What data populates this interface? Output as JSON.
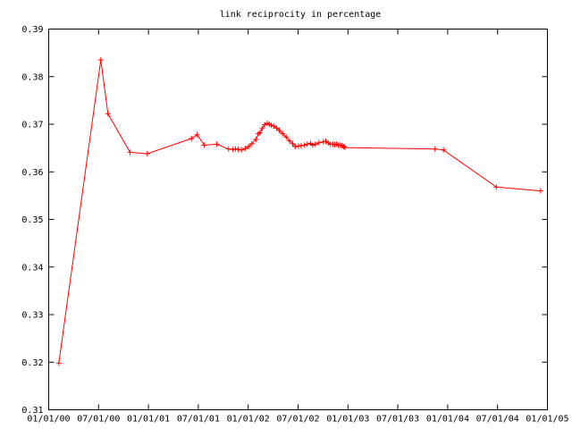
{
  "chart_data": {
    "type": "line",
    "title": "link reciprocity in percentage",
    "xlabel": "",
    "ylabel": "",
    "grid": false,
    "legend": "none",
    "series_color": "#ff0000",
    "ylim": [
      0.31,
      0.39
    ],
    "yticks": [
      "0.31",
      "0.32",
      "0.33",
      "0.34",
      "0.35",
      "0.36",
      "0.37",
      "0.38",
      "0.39"
    ],
    "xticks": [
      "01/01/00",
      "07/01/00",
      "01/01/01",
      "07/01/01",
      "01/01/02",
      "07/01/02",
      "01/01/03",
      "07/01/03",
      "01/01/04",
      "07/01/04",
      "01/01/05"
    ],
    "xlim": [
      "2000-01-01",
      "2005-01-01"
    ],
    "series": [
      {
        "x": [
          "2000-02-07",
          "2000-07-10",
          "2000-08-05",
          "2000-10-25",
          "2000-12-27",
          "2001-06-07",
          "2001-06-28",
          "2001-07-24",
          "2001-09-08",
          "2001-10-21",
          "2001-11-06",
          "2001-11-15",
          "2001-11-25",
          "2001-12-07",
          "2001-12-21",
          "2002-01-02",
          "2002-01-14",
          "2002-01-29",
          "2002-02-07",
          "2002-02-13",
          "2002-02-21",
          "2002-03-02",
          "2002-03-12",
          "2002-03-19",
          "2002-03-26",
          "2002-04-04",
          "2002-04-15",
          "2002-04-25",
          "2002-05-07",
          "2002-05-20",
          "2002-06-01",
          "2002-06-13",
          "2002-06-22",
          "2002-07-04",
          "2002-07-14",
          "2002-07-26",
          "2002-08-05",
          "2002-08-17",
          "2002-08-25",
          "2002-09-04",
          "2002-09-17",
          "2002-10-03",
          "2002-10-12",
          "2002-10-21",
          "2002-10-29",
          "2002-11-07",
          "2002-11-14",
          "2002-11-20",
          "2002-11-27",
          "2002-12-04",
          "2002-12-10",
          "2002-12-17",
          "2002-12-21",
          "2003-11-16",
          "2003-12-17",
          "2004-06-28",
          "2004-12-07"
        ],
        "values": [
          0.3198,
          0.3835,
          0.3722,
          0.3641,
          0.3638,
          0.367,
          0.3678,
          0.3656,
          0.3658,
          0.3648,
          0.3647,
          0.3648,
          0.3647,
          0.3646,
          0.3649,
          0.3653,
          0.3659,
          0.3668,
          0.368,
          0.3682,
          0.3691,
          0.3699,
          0.3702,
          0.37,
          0.3698,
          0.3696,
          0.3692,
          0.3687,
          0.368,
          0.3673,
          0.3665,
          0.3659,
          0.3653,
          0.3654,
          0.3655,
          0.3656,
          0.3658,
          0.366,
          0.3656,
          0.3658,
          0.3661,
          0.3663,
          0.3664,
          0.3661,
          0.3658,
          0.3658,
          0.3657,
          0.3658,
          0.3656,
          0.3656,
          0.3655,
          0.3653,
          0.3651,
          0.3648,
          0.3646,
          0.3568,
          0.356
        ]
      }
    ]
  }
}
